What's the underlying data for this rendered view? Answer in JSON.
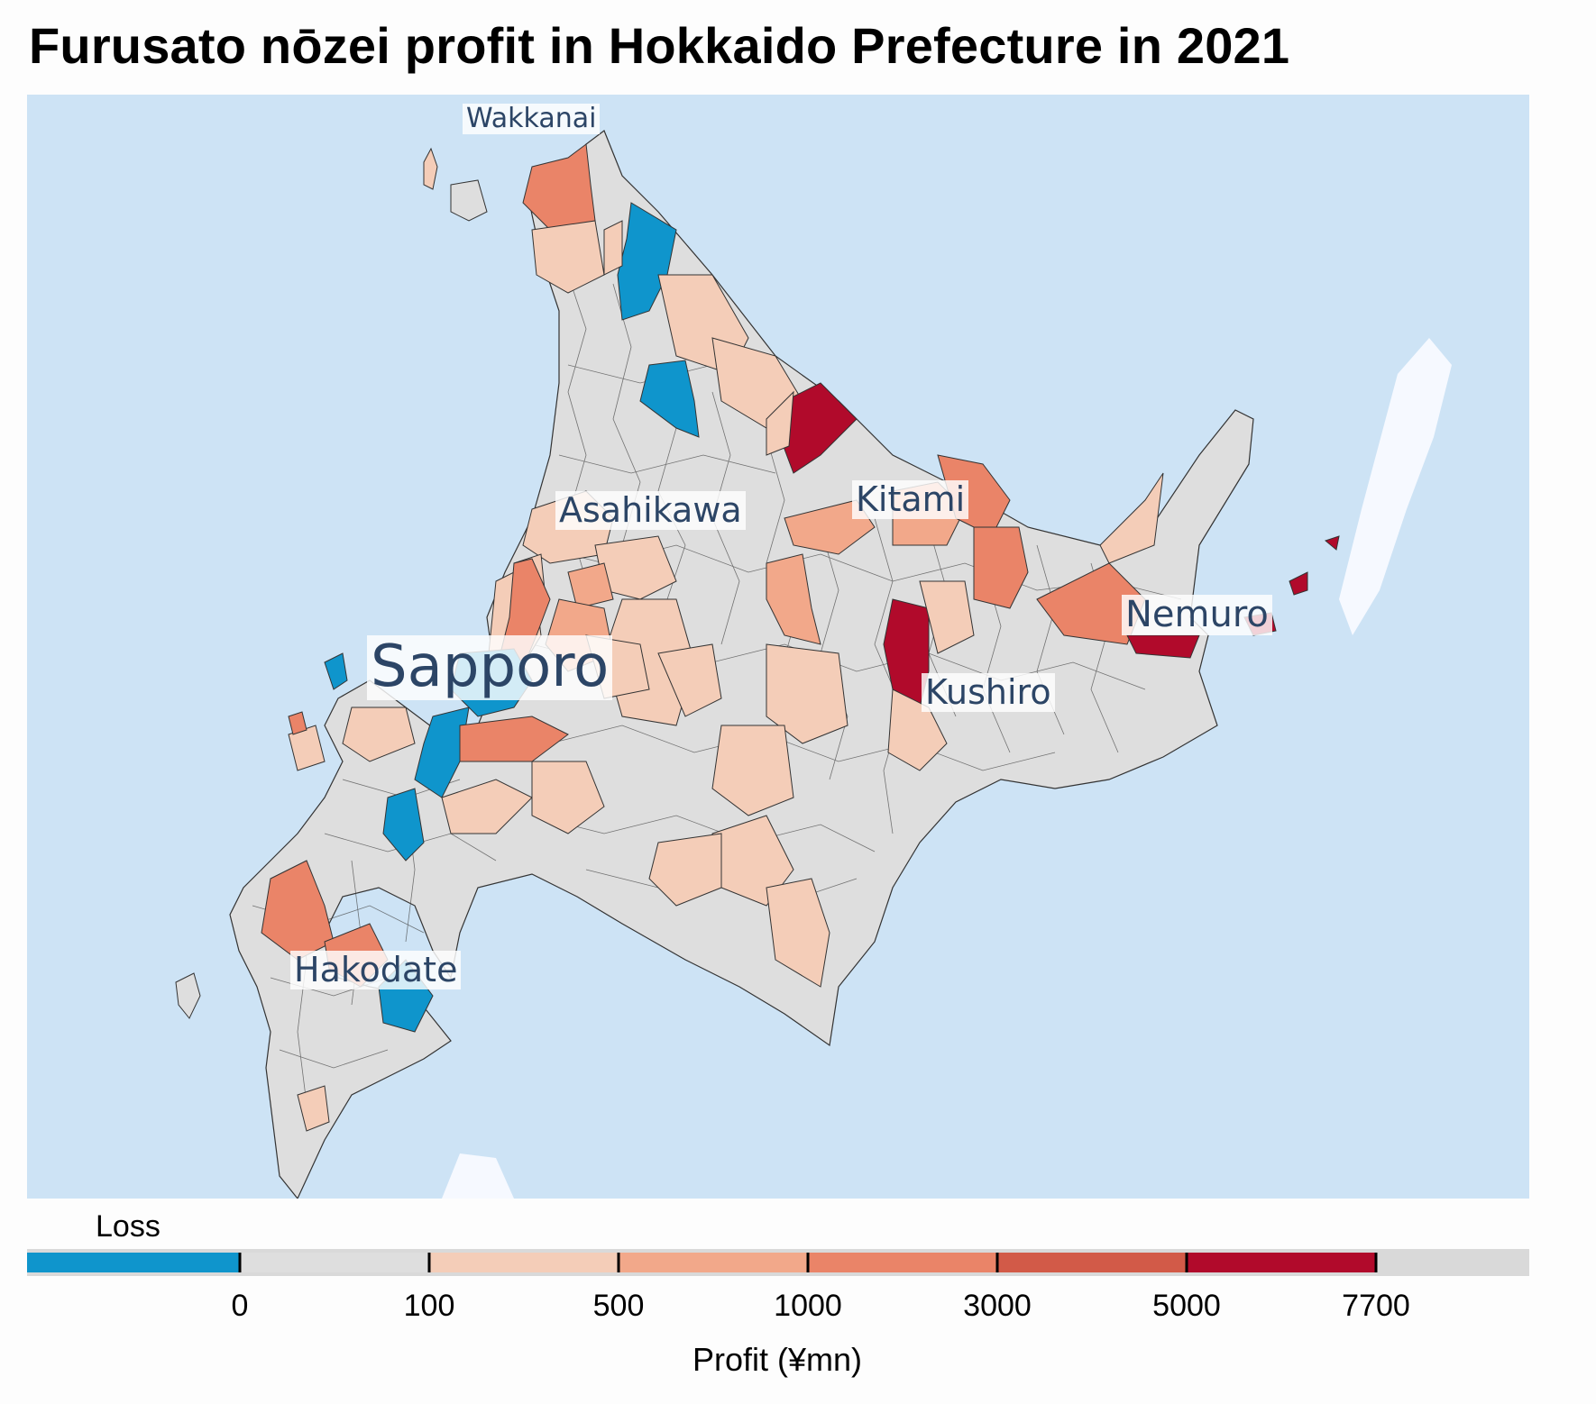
{
  "title": "Furusato nōzei profit in Hokkaido Prefecture in 2021",
  "map": {
    "region": "Hokkaido Prefecture",
    "year": "2021",
    "cities": [
      {
        "name": "Wakkanai"
      },
      {
        "name": "Asahikawa"
      },
      {
        "name": "Kitami"
      },
      {
        "name": "Sapporo"
      },
      {
        "name": "Nemuro"
      },
      {
        "name": "Kushiro"
      },
      {
        "name": "Hakodate"
      }
    ]
  },
  "legend": {
    "loss_label": "Loss",
    "axis_label": "Profit (¥mn)",
    "ticks": [
      "0",
      "100",
      "500",
      "1000",
      "3000",
      "5000",
      "7700"
    ],
    "bins": [
      {
        "range": "loss",
        "color": "#0f95cc"
      },
      {
        "range": "0-100",
        "color": "#dedede"
      },
      {
        "range": "100-500",
        "color": "#f4cdb8"
      },
      {
        "range": "500-1000",
        "color": "#f2a88a"
      },
      {
        "range": "1000-3000",
        "color": "#ea8468"
      },
      {
        "range": "3000-5000",
        "color": "#d25a48"
      },
      {
        "range": "5000-7700",
        "color": "#b10a2b"
      }
    ]
  },
  "colors": {
    "sea": "#cde3f5",
    "land_neutral": "#dedede",
    "border": "#333333",
    "label_text": "#2c4566"
  }
}
